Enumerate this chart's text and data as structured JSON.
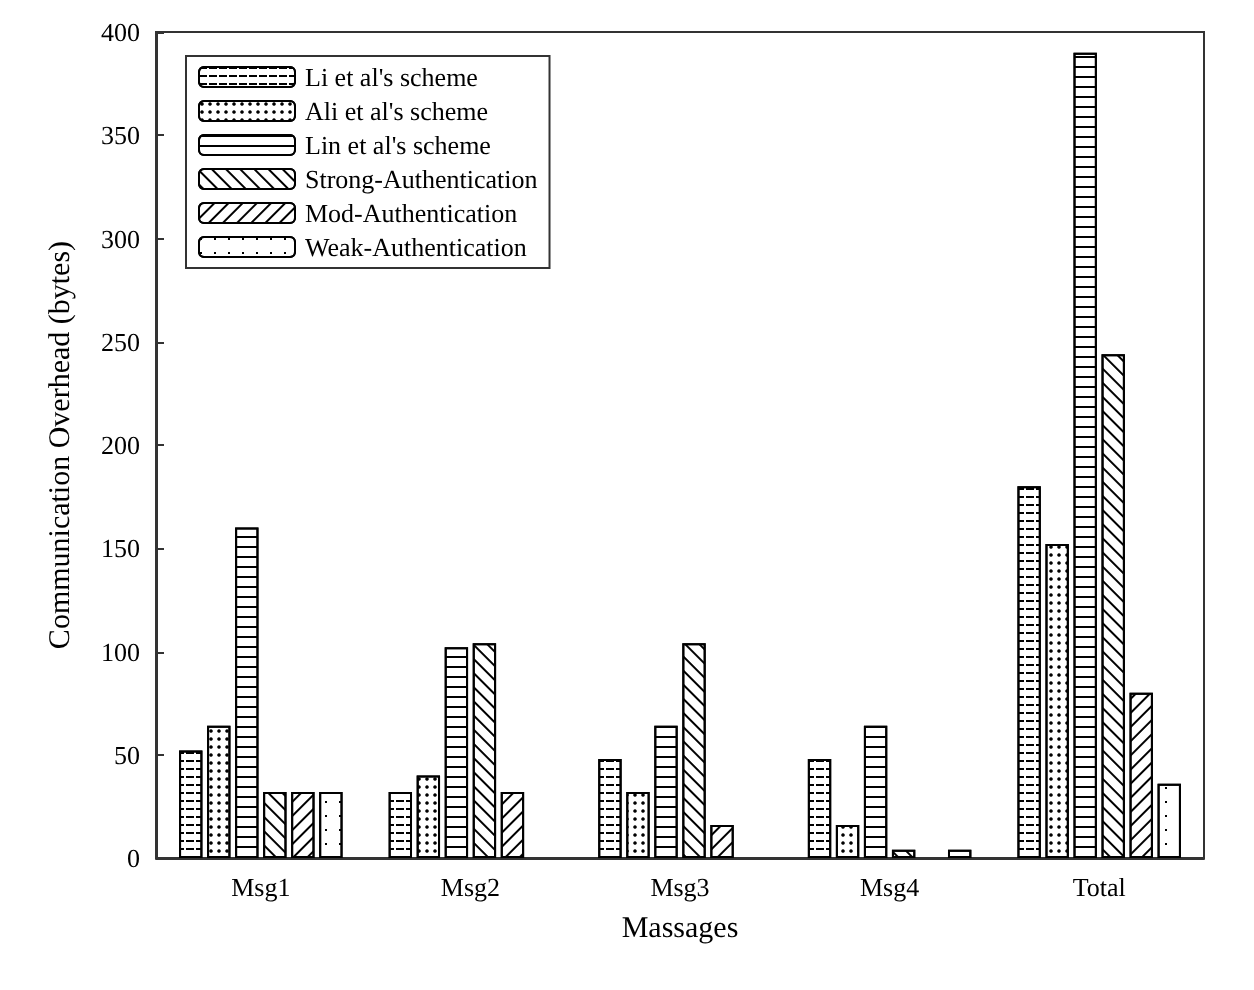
{
  "chart_data": {
    "type": "bar",
    "xlabel": "Massages",
    "ylabel": "Communication Overhead (bytes)",
    "categories": [
      "Msg1",
      "Msg2",
      "Msg3",
      "Msg4",
      "Total"
    ],
    "series": [
      {
        "name": "Li et al's scheme",
        "color": "#ffffff",
        "values": [
          52,
          32,
          48,
          48,
          180
        ]
      },
      {
        "name": "Ali et al's scheme",
        "color": "#ffffff",
        "values": [
          64,
          40,
          32,
          16,
          152
        ]
      },
      {
        "name": "Lin et al's scheme",
        "color": "#ffffff",
        "values": [
          160,
          102,
          64,
          64,
          390
        ]
      },
      {
        "name": "Strong-Authentication",
        "color": "#ffffff",
        "values": [
          32,
          104,
          104,
          4,
          244
        ]
      },
      {
        "name": "Mod-Authentication",
        "color": "#ffffff",
        "values": [
          32,
          32,
          16,
          null,
          80
        ]
      },
      {
        "name": "Weak-Authentication",
        "color": "#ffffff",
        "values": [
          32,
          null,
          null,
          4,
          36
        ]
      }
    ],
    "ylim": [
      0,
      400
    ],
    "yticks": [
      0,
      50,
      100,
      150,
      200,
      250,
      300,
      350,
      400
    ],
    "legend": "top left",
    "grid": false
  }
}
